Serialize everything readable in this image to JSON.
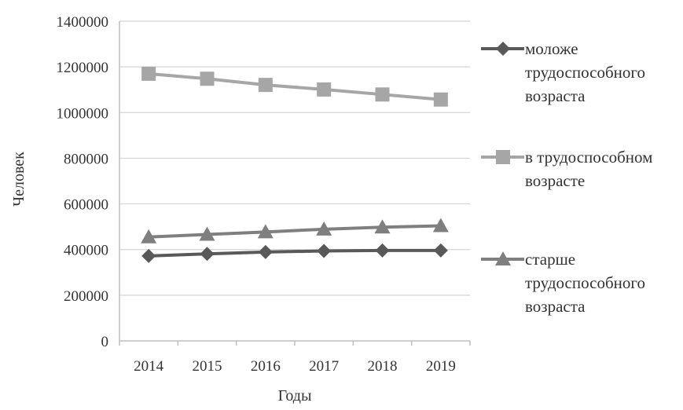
{
  "chart_data": {
    "type": "line",
    "categories": [
      "2014",
      "2015",
      "2016",
      "2017",
      "2018",
      "2019"
    ],
    "xlabel": "Годы",
    "ylabel": "Человек",
    "ylim": [
      0,
      1400000
    ],
    "yticks": [
      "0",
      "200000",
      "400000",
      "600000",
      "800000",
      "1000000",
      "1200000",
      "1400000"
    ],
    "grid": true,
    "legend_position": "right",
    "series": [
      {
        "name": "моложе трудоспособного возраста",
        "legend_lines": [
          "моложе",
          "трудоспособного",
          "возраста"
        ],
        "values": [
          372000,
          381000,
          389000,
          394000,
          396000,
          396000
        ],
        "color": "#595959",
        "marker": "diamond"
      },
      {
        "name": "в трудоспособном возрасте",
        "legend_lines": [
          "в трудоспособном",
          "возрасте"
        ],
        "values": [
          1170000,
          1148000,
          1121000,
          1101000,
          1079000,
          1057000
        ],
        "color": "#a6a6a6",
        "marker": "square"
      },
      {
        "name": "старше трудоспособного возраста",
        "legend_lines": [
          "старше",
          "трудоспособного",
          "возраста"
        ],
        "values": [
          455000,
          466000,
          477000,
          489000,
          498000,
          504000
        ],
        "color": "#7f7f7f",
        "marker": "triangle"
      }
    ]
  }
}
